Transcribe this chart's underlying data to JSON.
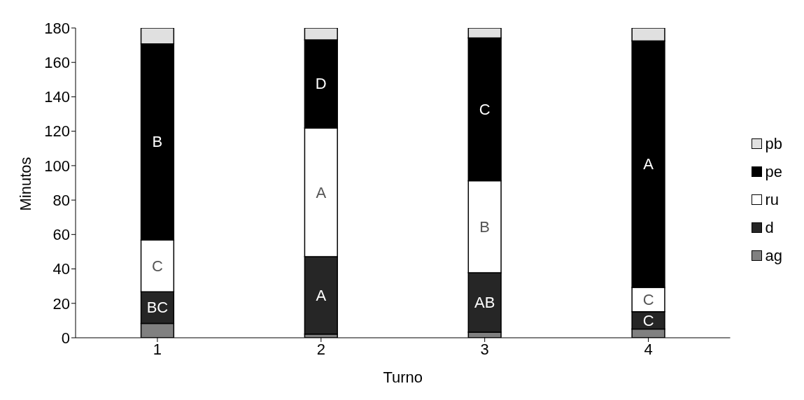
{
  "chart_data": {
    "type": "bar",
    "stacked": true,
    "xlabel": "Turno",
    "ylabel": "Minutos",
    "categories": [
      "1",
      "2",
      "3",
      "4"
    ],
    "ylim": [
      0,
      180
    ],
    "yticks": [
      0,
      20,
      40,
      60,
      80,
      100,
      120,
      140,
      160,
      180
    ],
    "grid": false,
    "legend": "right",
    "series": [
      {
        "name": "ag",
        "color": "#808080",
        "values": [
          8.3,
          2.1,
          3.3,
          5.1
        ]
      },
      {
        "name": "d",
        "color": "#262626",
        "values": [
          18.4,
          45,
          34.5,
          10
        ],
        "value_labels": [
          "BC",
          "A",
          "AB",
          "C"
        ]
      },
      {
        "name": "ru",
        "color": "#ffffff",
        "values": [
          30.1,
          74.8,
          53.4,
          14.2
        ],
        "value_labels": [
          "C",
          "A",
          "B",
          "C"
        ]
      },
      {
        "name": "pe",
        "color": "#000000",
        "values": [
          114,
          51.2,
          83,
          143.2
        ],
        "value_labels": [
          "B",
          "D",
          "C",
          "A"
        ]
      },
      {
        "name": "pb",
        "color": "#e0e0e0",
        "values": [
          9.2,
          6.9,
          5.8,
          7.6
        ]
      }
    ]
  }
}
